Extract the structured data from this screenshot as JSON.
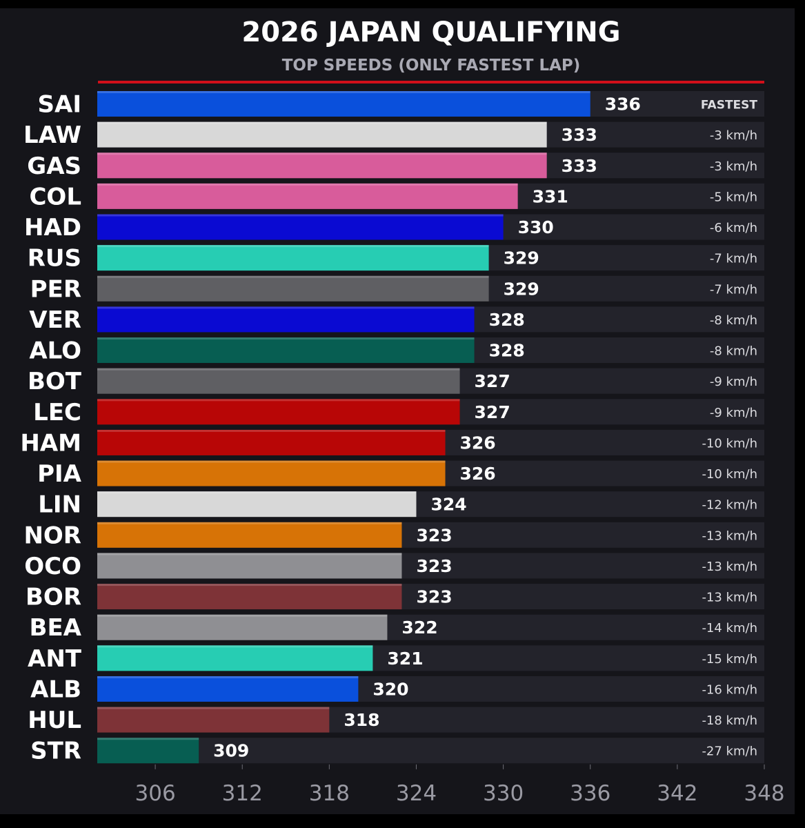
{
  "title": "2026 JAPAN QUALIFYING",
  "subtitle": "TOP SPEEDS (ONLY FASTEST LAP)",
  "chart_data": {
    "type": "bar",
    "orientation": "horizontal",
    "title": "2026 JAPAN QUALIFYING",
    "subtitle": "TOP SPEEDS (ONLY FASTEST LAP)",
    "xlim": [
      302,
      348
    ],
    "xticks": [
      306,
      312,
      318,
      324,
      330,
      336,
      342,
      348
    ],
    "grid": false,
    "bars": [
      {
        "driver": "SAI",
        "value": 336,
        "gap": "FASTEST",
        "color": "#0a50dc"
      },
      {
        "driver": "LAW",
        "value": 333,
        "gap": "-3 km/h",
        "color": "#d8d8d8"
      },
      {
        "driver": "GAS",
        "value": 333,
        "gap": "-3 km/h",
        "color": "#d85c9b"
      },
      {
        "driver": "COL",
        "value": 331,
        "gap": "-5 km/h",
        "color": "#d85c9b"
      },
      {
        "driver": "HAD",
        "value": 330,
        "gap": "-6 km/h",
        "color": "#0a0ad2"
      },
      {
        "driver": "RUS",
        "value": 329,
        "gap": "-7 km/h",
        "color": "#27cdb3"
      },
      {
        "driver": "PER",
        "value": 329,
        "gap": "-7 km/h",
        "color": "#5f5f63"
      },
      {
        "driver": "VER",
        "value": 328,
        "gap": "-8 km/h",
        "color": "#0a0ad2"
      },
      {
        "driver": "ALO",
        "value": 328,
        "gap": "-8 km/h",
        "color": "#075e52"
      },
      {
        "driver": "BOT",
        "value": 327,
        "gap": "-9 km/h",
        "color": "#5f5f63"
      },
      {
        "driver": "LEC",
        "value": 327,
        "gap": "-9 km/h",
        "color": "#b80606"
      },
      {
        "driver": "HAM",
        "value": 326,
        "gap": "-10 km/h",
        "color": "#b80606"
      },
      {
        "driver": "PIA",
        "value": 326,
        "gap": "-10 km/h",
        "color": "#d77306"
      },
      {
        "driver": "LIN",
        "value": 324,
        "gap": "-12 km/h",
        "color": "#d8d8d8"
      },
      {
        "driver": "NOR",
        "value": 323,
        "gap": "-13 km/h",
        "color": "#d77306"
      },
      {
        "driver": "OCO",
        "value": 323,
        "gap": "-13 km/h",
        "color": "#8f8f93"
      },
      {
        "driver": "BOR",
        "value": 323,
        "gap": "-13 km/h",
        "color": "#7e3337"
      },
      {
        "driver": "BEA",
        "value": 322,
        "gap": "-14 km/h",
        "color": "#8f8f93"
      },
      {
        "driver": "ANT",
        "value": 321,
        "gap": "-15 km/h",
        "color": "#27cdb3"
      },
      {
        "driver": "ALB",
        "value": 320,
        "gap": "-16 km/h",
        "color": "#0a50dc"
      },
      {
        "driver": "HUL",
        "value": 318,
        "gap": "-18 km/h",
        "color": "#7e3337"
      },
      {
        "driver": "STR",
        "value": 309,
        "gap": "-27 km/h",
        "color": "#075e52"
      }
    ]
  },
  "colors": {
    "background": "#15151a",
    "row_track": "#23232b",
    "title": "#ffffff",
    "subtitle": "#a9a9b3",
    "accent_line": "#d10f1a",
    "value_text": "#ffffff",
    "gap_text": "#dcdce0",
    "tick_text": "#9a9aa3"
  }
}
